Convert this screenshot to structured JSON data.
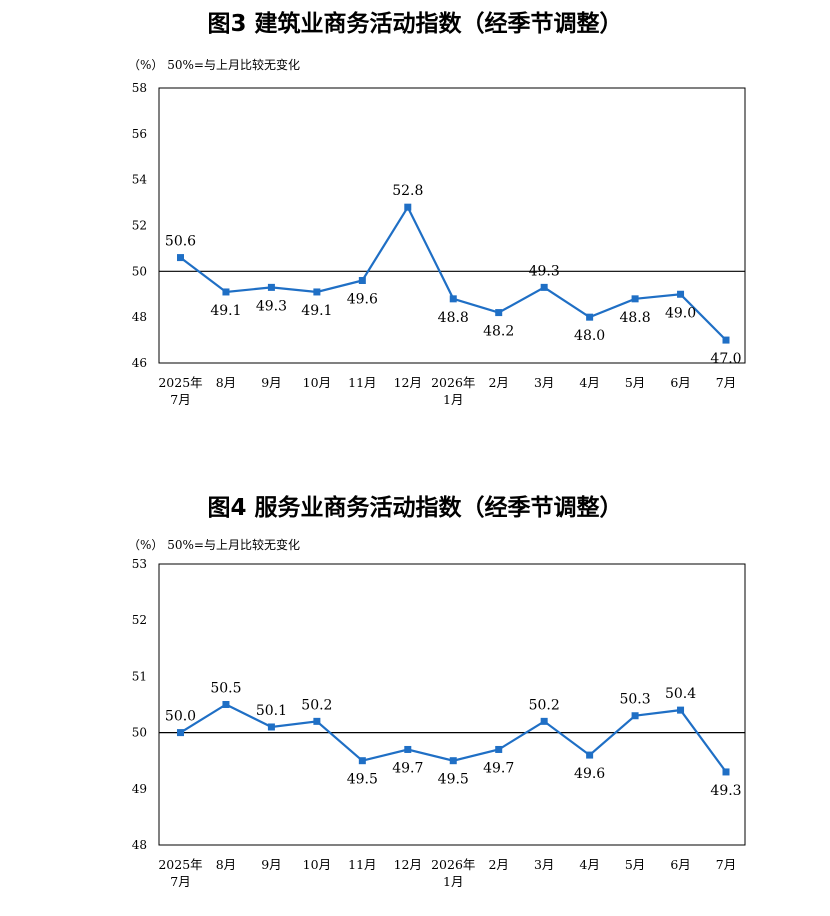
{
  "chart_data": [
    {
      "type": "line",
      "title": "图3  建筑业商务活动指数（经季节调整）",
      "unit_note": "（%）  50%=与上月比较无变化",
      "categories": [
        [
          "2025年",
          "7月"
        ],
        [
          "8月"
        ],
        [
          "9月"
        ],
        [
          "10月"
        ],
        [
          "11月"
        ],
        [
          "12月"
        ],
        [
          "2026年",
          "1月"
        ],
        [
          "2月"
        ],
        [
          "3月"
        ],
        [
          "4月"
        ],
        [
          "5月"
        ],
        [
          "6月"
        ],
        [
          "7月"
        ]
      ],
      "values": [
        50.6,
        49.1,
        49.3,
        49.1,
        49.6,
        52.8,
        48.8,
        48.2,
        49.3,
        48.0,
        48.8,
        49.0,
        47.0
      ],
      "data_labels": [
        "50.6",
        "49.1",
        "49.3",
        "49.1",
        "49.6",
        "52.8",
        "48.8",
        "48.2",
        "49.3",
        "48.0",
        "48.8",
        "49.0",
        "47.0"
      ],
      "label_position": [
        "above",
        "below",
        "below",
        "below",
        "below",
        "above",
        "below",
        "below",
        "above",
        "below",
        "below",
        "below",
        "below"
      ],
      "ylim": [
        46,
        58
      ],
      "yticks": [
        "46",
        "48",
        "50",
        "52",
        "54",
        "56",
        "58"
      ],
      "reference_line": 50,
      "line_color": "#1f6fc5"
    },
    {
      "type": "line",
      "title": "图4  服务业商务活动指数（经季节调整）",
      "unit_note": "（%）  50%=与上月比较无变化",
      "categories": [
        [
          "2025年",
          "7月"
        ],
        [
          "8月"
        ],
        [
          "9月"
        ],
        [
          "10月"
        ],
        [
          "11月"
        ],
        [
          "12月"
        ],
        [
          "2026年",
          "1月"
        ],
        [
          "2月"
        ],
        [
          "3月"
        ],
        [
          "4月"
        ],
        [
          "5月"
        ],
        [
          "6月"
        ],
        [
          "7月"
        ]
      ],
      "values": [
        50.0,
        50.5,
        50.1,
        50.2,
        49.5,
        49.7,
        49.5,
        49.7,
        50.2,
        49.6,
        50.3,
        50.4,
        49.3
      ],
      "data_labels": [
        "50.0",
        "50.5",
        "50.1",
        "50.2",
        "49.5",
        "49.7",
        "49.5",
        "49.7",
        "50.2",
        "49.6",
        "50.3",
        "50.4",
        "49.3"
      ],
      "label_position": [
        "above",
        "above",
        "above",
        "above",
        "below",
        "below",
        "below",
        "below",
        "above",
        "below",
        "above",
        "above",
        "below"
      ],
      "ylim": [
        48,
        53
      ],
      "yticks": [
        "48",
        "49",
        "50",
        "51",
        "52",
        "53"
      ],
      "reference_line": 50,
      "line_color": "#1f6fc5"
    }
  ]
}
